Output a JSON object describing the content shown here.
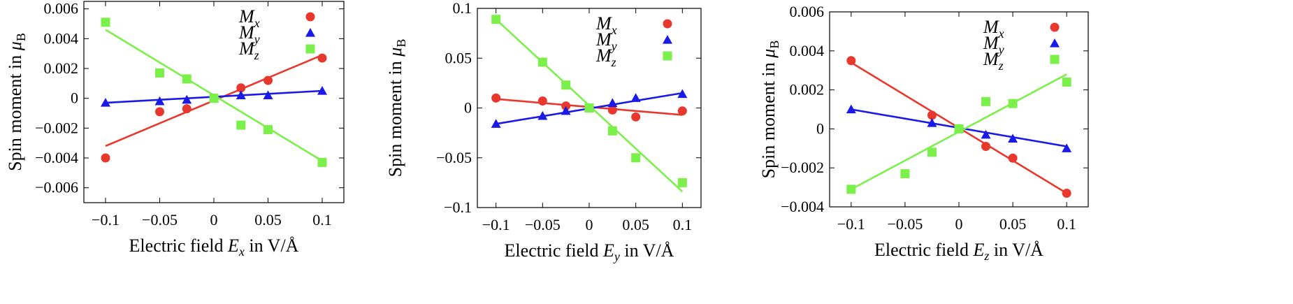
{
  "chart_data": [
    {
      "type": "scatter",
      "xlabel": {
        "prefix": "Electric field ",
        "var": "E",
        "sub": "x",
        "suffix": " in V/Å"
      },
      "ylabel": {
        "prefix": "Spin moment in ",
        "var": "μ",
        "sub": "B"
      },
      "xlim": [
        -0.12,
        0.12
      ],
      "ylim": [
        -0.007,
        0.0065
      ],
      "xticks": [
        -0.1,
        -0.05,
        0,
        0.05,
        0.1
      ],
      "xtick_labels": [
        "-0.1",
        "-0.05",
        "0",
        "0.05",
        "0.1"
      ],
      "yticks": [
        -0.006,
        -0.004,
        -0.002,
        0,
        0.002,
        0.004,
        0.006
      ],
      "ytick_labels": [
        "-0.006",
        "-0.004",
        "-0.002",
        "0",
        "0.002",
        "0.004",
        "0.006"
      ],
      "legend_position": "top-right",
      "series": [
        {
          "name": "M",
          "sub": "x",
          "marker": "circle",
          "color": "#e8372c",
          "x": [
            -0.1,
            -0.05,
            -0.025,
            0,
            0.025,
            0.05,
            0.1
          ],
          "y": [
            -0.004,
            -0.0009,
            -0.0007,
            0,
            0.0007,
            0.0012,
            0.0027
          ],
          "fit": [
            [
              -0.1,
              -0.0032
            ],
            [
              0.1,
              0.0029
            ]
          ]
        },
        {
          "name": "M",
          "sub": "y",
          "marker": "triangle",
          "color": "#1a1ae6",
          "x": [
            -0.1,
            -0.05,
            -0.025,
            0,
            0.025,
            0.05,
            0.1
          ],
          "y": [
            -0.0003,
            -0.0002,
            -0.0001,
            0,
            0.0002,
            0.0002,
            0.0005
          ],
          "fit": [
            [
              -0.1,
              -0.0003
            ],
            [
              0.1,
              0.0005
            ]
          ]
        },
        {
          "name": "M",
          "sub": "z",
          "marker": "square",
          "color": "#7cf04a",
          "x": [
            -0.1,
            -0.05,
            -0.025,
            0,
            0.025,
            0.05,
            0.1
          ],
          "y": [
            0.0051,
            0.0017,
            0.0013,
            0,
            -0.0018,
            -0.0021,
            -0.0043
          ],
          "fit": [
            [
              -0.1,
              0.0046
            ],
            [
              0.1,
              -0.0042
            ]
          ]
        }
      ]
    },
    {
      "type": "scatter",
      "xlabel": {
        "prefix": "Electric field ",
        "var": "E",
        "sub": "y",
        "suffix": " in V/Å"
      },
      "ylabel": {
        "prefix": "Spin moment in ",
        "var": "μ",
        "sub": "B"
      },
      "xlim": [
        -0.12,
        0.12
      ],
      "ylim": [
        -0.1,
        0.1
      ],
      "xticks": [
        -0.1,
        -0.05,
        0,
        0.05,
        0.1
      ],
      "xtick_labels": [
        "-0.1",
        "-0.05",
        "0",
        "0.05",
        "0.1"
      ],
      "yticks": [
        -0.1,
        -0.05,
        0,
        0.05,
        0.1
      ],
      "ytick_labels": [
        "-0.1",
        "-0.05",
        "0",
        "0.05",
        "0.1"
      ],
      "legend_position": "top-right",
      "series": [
        {
          "name": "M",
          "sub": "x",
          "marker": "circle",
          "color": "#e8372c",
          "x": [
            -0.1,
            -0.05,
            -0.025,
            0,
            0.025,
            0.05,
            0.1
          ],
          "y": [
            0.01,
            0.007,
            0.002,
            0,
            -0.002,
            -0.009,
            -0.003
          ],
          "fit": [
            [
              -0.1,
              0.009
            ],
            [
              0.1,
              -0.007
            ]
          ]
        },
        {
          "name": "M",
          "sub": "y",
          "marker": "triangle",
          "color": "#1a1ae6",
          "x": [
            -0.1,
            -0.05,
            -0.025,
            0,
            0.025,
            0.05,
            0.1
          ],
          "y": [
            -0.016,
            -0.008,
            -0.003,
            0,
            0.005,
            0.01,
            0.014
          ],
          "fit": [
            [
              -0.1,
              -0.016
            ],
            [
              0.1,
              0.015
            ]
          ]
        },
        {
          "name": "M",
          "sub": "z",
          "marker": "square",
          "color": "#7cf04a",
          "x": [
            -0.1,
            -0.05,
            -0.025,
            0,
            0.025,
            0.05,
            0.1
          ],
          "y": [
            0.089,
            0.046,
            0.023,
            0,
            -0.023,
            -0.05,
            -0.075
          ],
          "fit": [
            [
              -0.1,
              0.089
            ],
            [
              0.1,
              -0.084
            ]
          ]
        }
      ]
    },
    {
      "type": "scatter",
      "xlabel": {
        "prefix": "Electric field ",
        "var": "E",
        "sub": "z",
        "suffix": " in V/Å"
      },
      "ylabel": {
        "prefix": "Spin moment in ",
        "var": "μ",
        "sub": "B"
      },
      "xlim": [
        -0.12,
        0.12
      ],
      "ylim": [
        -0.004,
        0.006
      ],
      "xticks": [
        -0.1,
        -0.05,
        0,
        0.05,
        0.1
      ],
      "xtick_labels": [
        "-0.1",
        "-0.05",
        "0",
        "0.05",
        "0.1"
      ],
      "yticks": [
        -0.004,
        -0.002,
        0,
        0.002,
        0.004,
        0.006
      ],
      "ytick_labels": [
        "-0.004",
        "-0.002",
        "0",
        "0.002",
        "0.004",
        "0.006"
      ],
      "legend_position": "top-right",
      "series": [
        {
          "name": "M",
          "sub": "x",
          "marker": "circle",
          "color": "#e8372c",
          "x": [
            -0.1,
            -0.025,
            0,
            0.025,
            0.05,
            0.1
          ],
          "y": [
            0.0035,
            0.0007,
            0,
            -0.0009,
            -0.0015,
            -0.0033
          ],
          "fit": [
            [
              -0.1,
              0.0034
            ],
            [
              0.1,
              -0.0033
            ]
          ]
        },
        {
          "name": "M",
          "sub": "y",
          "marker": "triangle",
          "color": "#1a1ae6",
          "x": [
            -0.1,
            -0.025,
            0,
            0.025,
            0.05,
            0.1
          ],
          "y": [
            0.001,
            0.0003,
            0,
            -0.0003,
            -0.0005,
            -0.001
          ],
          "fit": [
            [
              -0.1,
              0.001
            ],
            [
              0.1,
              -0.0009
            ]
          ]
        },
        {
          "name": "M",
          "sub": "z",
          "marker": "square",
          "color": "#7cf04a",
          "x": [
            -0.1,
            -0.05,
            -0.025,
            0,
            0.025,
            0.05,
            0.1
          ],
          "y": [
            -0.0031,
            -0.0023,
            -0.0012,
            0,
            0.0014,
            0.0013,
            0.0024
          ],
          "fit": [
            [
              -0.1,
              -0.0031
            ],
            [
              0.1,
              0.0028
            ]
          ]
        }
      ]
    }
  ]
}
